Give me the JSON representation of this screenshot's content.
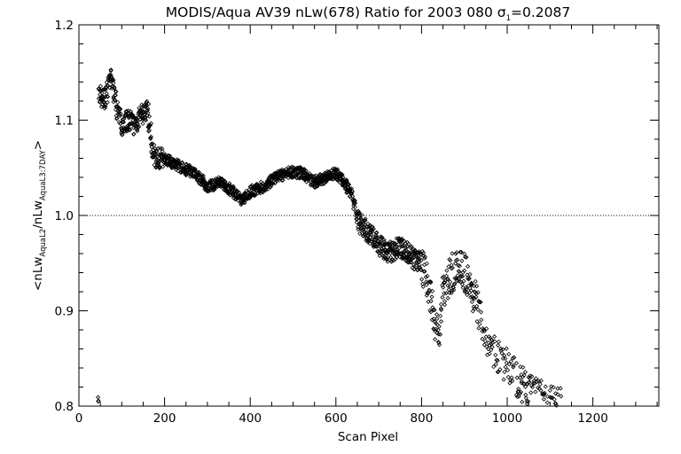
{
  "chart_data": {
    "type": "scatter",
    "title": "MODIS/Aqua AV39 nLw(678) Ratio for 2003 080 σ1=0.2087",
    "title_parts": {
      "prefix": "MODIS/Aqua AV39 nLw(678) Ratio for 2003 080 ",
      "sigma": "σ",
      "sigma_sub": "1",
      "suffix": "=0.2087"
    },
    "xlabel": "Scan Pixel",
    "ylabel": "<nLwAquaL2/nLwAquaL3:7DAY>",
    "ylabel_parts": {
      "a": "<nLw",
      "a_sub": "AquaL2",
      "b": "/nLw",
      "b_sub": "AquaL3:7DAY",
      "c": ">"
    },
    "xlim": [
      0,
      1354
    ],
    "ylim": [
      0.8,
      1.2
    ],
    "xticks": [
      0,
      200,
      400,
      600,
      800,
      1000,
      1200
    ],
    "yticks": [
      0.8,
      0.9,
      1.0,
      1.1,
      1.2
    ],
    "xtick_labels": [
      "0",
      "200",
      "400",
      "600",
      "800",
      "1000",
      "1200"
    ],
    "ytick_labels": [
      "0.8",
      "0.9",
      "1.0",
      "1.1",
      "1.2"
    ],
    "reference_line": {
      "y": 1.0,
      "style": "dotted"
    },
    "marker": "diamond",
    "grid": false,
    "trend": [
      [
        45,
        1.13
      ],
      [
        60,
        1.12
      ],
      [
        75,
        1.145
      ],
      [
        90,
        1.11
      ],
      [
        100,
        1.095
      ],
      [
        115,
        1.1
      ],
      [
        130,
        1.095
      ],
      [
        145,
        1.105
      ],
      [
        160,
        1.11
      ],
      [
        175,
        1.06
      ],
      [
        200,
        1.06
      ],
      [
        220,
        1.055
      ],
      [
        240,
        1.05
      ],
      [
        270,
        1.045
      ],
      [
        300,
        1.03
      ],
      [
        330,
        1.035
      ],
      [
        360,
        1.025
      ],
      [
        380,
        1.015
      ],
      [
        400,
        1.025
      ],
      [
        430,
        1.03
      ],
      [
        460,
        1.04
      ],
      [
        490,
        1.045
      ],
      [
        520,
        1.045
      ],
      [
        550,
        1.035
      ],
      [
        575,
        1.04
      ],
      [
        600,
        1.045
      ],
      [
        620,
        1.035
      ],
      [
        640,
        1.02
      ],
      [
        650,
        0.995
      ],
      [
        670,
        0.985
      ],
      [
        690,
        0.975
      ],
      [
        720,
        0.96
      ],
      [
        740,
        0.965
      ],
      [
        760,
        0.965
      ],
      [
        780,
        0.955
      ],
      [
        800,
        0.95
      ],
      [
        815,
        0.93
      ],
      [
        830,
        0.89
      ],
      [
        840,
        0.875
      ],
      [
        850,
        0.92
      ],
      [
        870,
        0.94
      ],
      [
        890,
        0.945
      ],
      [
        910,
        0.935
      ],
      [
        930,
        0.905
      ],
      [
        950,
        0.875
      ],
      [
        970,
        0.855
      ],
      [
        990,
        0.845
      ],
      [
        1010,
        0.835
      ],
      [
        1030,
        0.825
      ],
      [
        1050,
        0.815
      ],
      [
        1070,
        0.81
      ],
      [
        1090,
        0.805
      ],
      [
        1110,
        0.8
      ],
      [
        1130,
        0.8
      ]
    ]
  }
}
